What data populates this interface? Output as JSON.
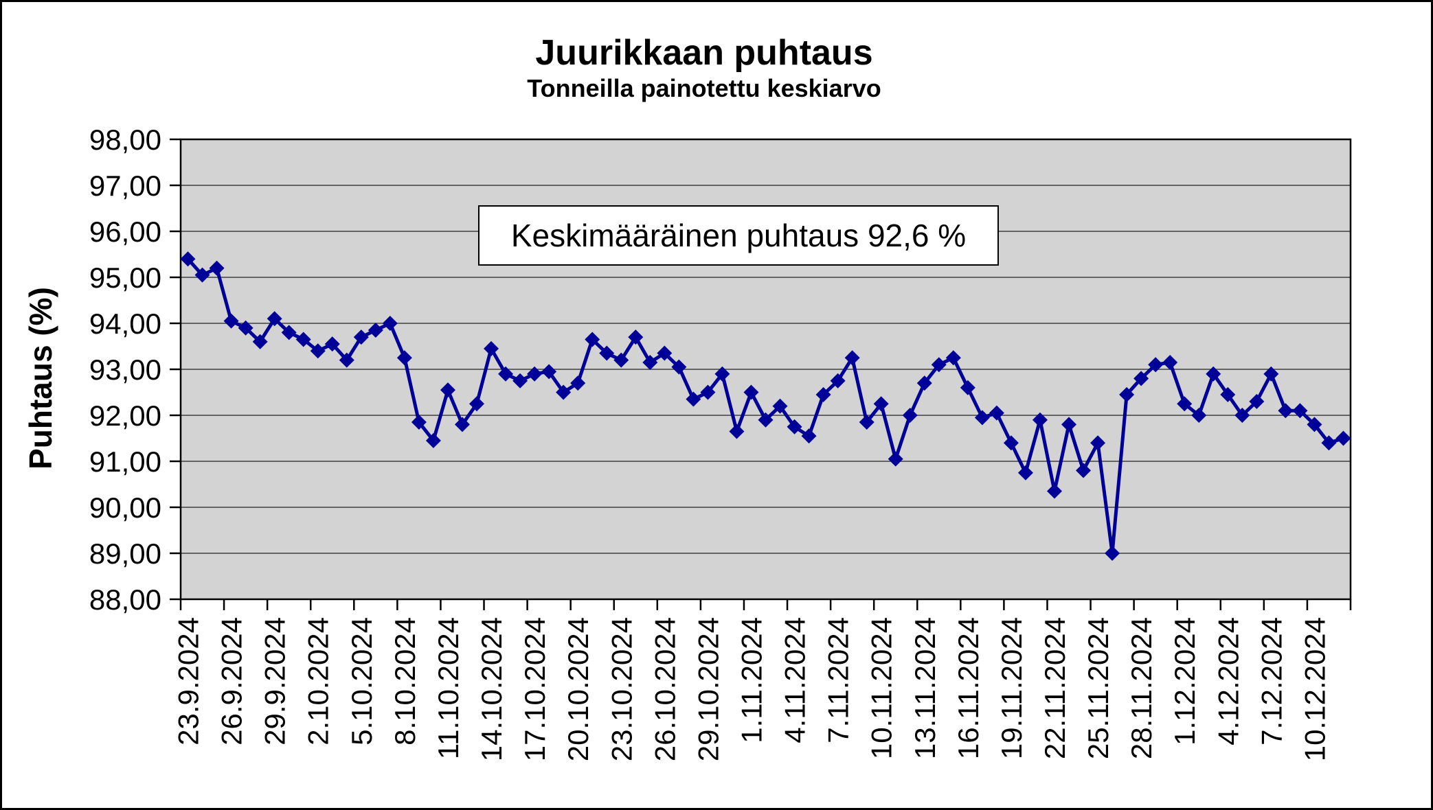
{
  "chart_data": {
    "type": "line",
    "title": "Juurikkaan puhtaus",
    "subtitle": "Tonneilla painotettu keskiarvo",
    "ylabel": "Puhtaus (%)",
    "xlabel": "",
    "annotation": "Keskimääräinen puhtaus 92,6 %",
    "average_purity_percent": "92,6",
    "ylim": [
      88,
      98
    ],
    "y_tick_step": 1,
    "y_tick_decimal_separator": ",",
    "x_label_interval": 3,
    "grid": "horizontal-major",
    "legend": "none",
    "series_color": "#000099",
    "plot_bg_color": "#d3d3d3",
    "gridline_color": "#404040",
    "marker": "diamond",
    "categories": [
      "23.9.2024",
      "24.9.2024",
      "25.9.2024",
      "26.9.2024",
      "27.9.2024",
      "28.9.2024",
      "29.9.2024",
      "30.9.2024",
      "1.10.2024",
      "2.10.2024",
      "3.10.2024",
      "4.10.2024",
      "5.10.2024",
      "6.10.2024",
      "7.10.2024",
      "8.10.2024",
      "9.10.2024",
      "10.10.2024",
      "11.10.2024",
      "12.10.2024",
      "13.10.2024",
      "14.10.2024",
      "15.10.2024",
      "16.10.2024",
      "17.10.2024",
      "18.10.2024",
      "19.10.2024",
      "20.10.2024",
      "21.10.2024",
      "22.10.2024",
      "23.10.2024",
      "24.10.2024",
      "25.10.2024",
      "26.10.2024",
      "27.10.2024",
      "28.10.2024",
      "29.10.2024",
      "30.10.2024",
      "31.10.2024",
      "1.11.2024",
      "2.11.2024",
      "3.11.2024",
      "4.11.2024",
      "5.11.2024",
      "6.11.2024",
      "7.11.2024",
      "8.11.2024",
      "9.11.2024",
      "10.11.2024",
      "11.11.2024",
      "12.11.2024",
      "13.11.2024",
      "14.11.2024",
      "15.11.2024",
      "16.11.2024",
      "17.11.2024",
      "18.11.2024",
      "19.11.2024",
      "20.11.2024",
      "21.11.2024",
      "22.11.2024",
      "23.11.2024",
      "24.11.2024",
      "25.11.2024",
      "26.11.2024",
      "27.11.2024",
      "28.11.2024",
      "29.11.2024",
      "30.11.2024",
      "1.12.2024",
      "2.12.2024",
      "3.12.2024",
      "4.12.2024",
      "5.12.2024",
      "6.12.2024",
      "7.12.2024",
      "8.12.2024",
      "9.12.2024",
      "10.12.2024",
      "11.12.2024",
      "12.12.2024"
    ],
    "values": [
      95.4,
      95.05,
      95.2,
      94.05,
      93.9,
      93.6,
      94.1,
      93.8,
      93.65,
      93.4,
      93.55,
      93.2,
      93.7,
      93.85,
      94.0,
      93.25,
      91.85,
      91.45,
      92.55,
      91.8,
      92.25,
      93.45,
      92.9,
      92.75,
      92.9,
      92.95,
      92.5,
      92.7,
      93.65,
      93.35,
      93.2,
      93.7,
      93.15,
      93.35,
      93.05,
      92.35,
      92.5,
      92.9,
      91.65,
      92.5,
      91.9,
      92.2,
      91.75,
      91.55,
      92.45,
      92.75,
      93.25,
      91.85,
      92.25,
      91.05,
      92.0,
      92.7,
      93.1,
      93.25,
      92.6,
      91.95,
      92.05,
      91.4,
      90.75,
      91.9,
      90.35,
      91.8,
      90.8,
      91.4,
      89.0,
      92.45,
      92.8,
      93.1,
      93.15,
      92.25,
      92.0,
      92.9,
      92.45,
      92.0,
      92.3,
      92.9,
      92.1,
      92.1,
      91.8,
      91.4,
      91.5
    ]
  }
}
